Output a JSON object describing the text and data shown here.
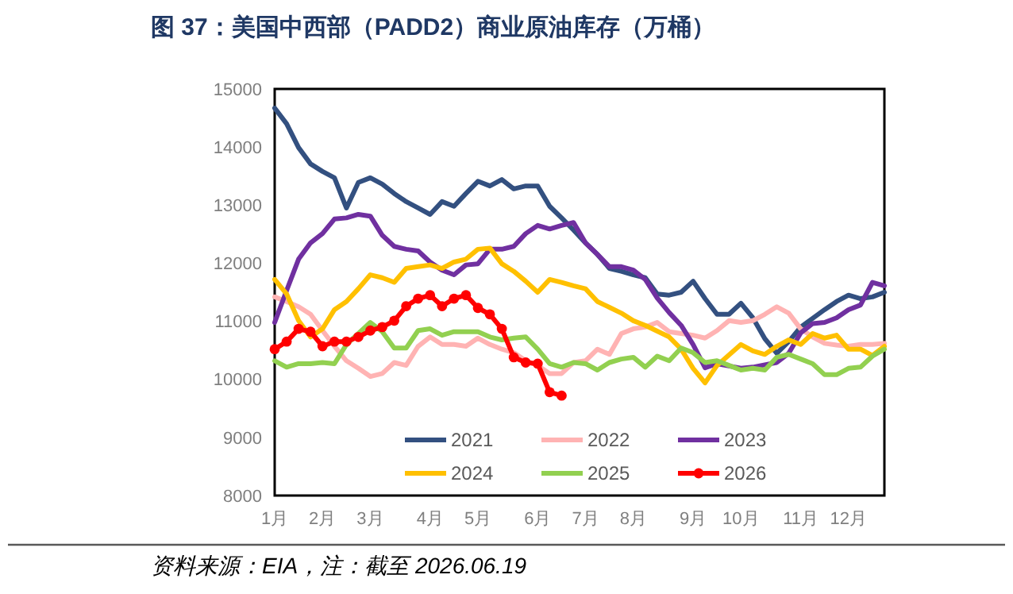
{
  "chart_data": {
    "type": "line",
    "title": "图 37：美国中西部（PADD2）商业原油库存（万桶）",
    "annotations": [
      "资料来源：EIA，注：截至 2026.06.19"
    ],
    "categories": [
      "1月",
      null,
      null,
      null,
      "2月",
      null,
      null,
      null,
      "3月",
      null,
      null,
      null,
      null,
      "4月",
      null,
      null,
      null,
      "5月",
      null,
      null,
      null,
      null,
      "6月",
      null,
      null,
      null,
      "7月",
      null,
      null,
      null,
      "8月",
      null,
      null,
      null,
      null,
      "9月",
      null,
      null,
      null,
      "10月",
      null,
      null,
      null,
      null,
      "11月",
      null,
      null,
      null,
      "12月",
      null,
      null,
      null
    ],
    "ylim": [
      8000,
      15000
    ],
    "yticks": [
      8000,
      9000,
      10000,
      11000,
      12000,
      13000,
      14000,
      15000
    ],
    "grid": false,
    "legend": "bottom",
    "line_style": "solid",
    "series": [
      {
        "name": "2021",
        "color": "#335080",
        "values": [
          14670,
          14400,
          13990,
          13710,
          13580,
          13470,
          12950,
          13390,
          13470,
          13360,
          13200,
          13060,
          12950,
          12840,
          13060,
          12980,
          13200,
          13410,
          13330,
          13440,
          13280,
          13330,
          13330,
          12980,
          12780,
          12570,
          12350,
          12150,
          11910,
          11860,
          11800,
          11750,
          11470,
          11450,
          11500,
          11690,
          11390,
          11120,
          11120,
          11310,
          11060,
          10700,
          10450,
          10650,
          10900,
          11050,
          11200,
          11340,
          11450,
          11390,
          11420,
          11500
        ]
      },
      {
        "name": "2022",
        "color": "#ffb3b3",
        "values": [
          11420,
          11340,
          11250,
          11120,
          10840,
          10570,
          10320,
          10190,
          10050,
          10100,
          10290,
          10240,
          10570,
          10730,
          10600,
          10600,
          10570,
          10710,
          10600,
          10520,
          10460,
          10320,
          10240,
          10100,
          10100,
          10290,
          10320,
          10520,
          10430,
          10790,
          10870,
          10900,
          10980,
          10820,
          10790,
          10760,
          10710,
          10840,
          11010,
          10980,
          11010,
          11120,
          11250,
          11140,
          10870,
          10730,
          10620,
          10590,
          10570,
          10600,
          10600,
          10620
        ]
      },
      {
        "name": "2023",
        "color": "#7030a0",
        "values": [
          10980,
          11530,
          12070,
          12350,
          12510,
          12760,
          12780,
          12840,
          12810,
          12480,
          12290,
          12240,
          12210,
          12020,
          11880,
          11800,
          11970,
          11990,
          12240,
          12240,
          12290,
          12510,
          12650,
          12590,
          12650,
          12700,
          12350,
          12150,
          11940,
          11940,
          11880,
          11720,
          11400,
          11150,
          10930,
          10600,
          10200,
          10270,
          10230,
          10190,
          10210,
          10250,
          10290,
          10450,
          10800,
          10960,
          10980,
          11060,
          11200,
          11280,
          11670,
          11610
        ]
      },
      {
        "name": "2024",
        "color": "#ffc000",
        "values": [
          11720,
          11470,
          11010,
          10730,
          10870,
          11200,
          11340,
          11560,
          11800,
          11750,
          11670,
          11910,
          11940,
          11970,
          11910,
          12020,
          12070,
          12240,
          12260,
          11990,
          11860,
          11690,
          11500,
          11720,
          11670,
          11610,
          11560,
          11340,
          11240,
          11140,
          11010,
          10930,
          10830,
          10730,
          10520,
          10190,
          9940,
          10240,
          10420,
          10600,
          10490,
          10430,
          10570,
          10680,
          10600,
          10790,
          10710,
          10760,
          10520,
          10520,
          10410,
          10570
        ]
      },
      {
        "name": "2025",
        "color": "#92d050",
        "values": [
          10320,
          10210,
          10270,
          10270,
          10290,
          10270,
          10600,
          10790,
          10980,
          10820,
          10540,
          10540,
          10840,
          10870,
          10760,
          10820,
          10820,
          10820,
          10730,
          10680,
          10710,
          10730,
          10520,
          10270,
          10210,
          10290,
          10270,
          10160,
          10290,
          10350,
          10380,
          10210,
          10400,
          10320,
          10540,
          10460,
          10290,
          10320,
          10240,
          10160,
          10190,
          10160,
          10380,
          10430,
          10350,
          10270,
          10080,
          10080,
          10190,
          10210,
          10400,
          10520
        ]
      },
      {
        "name": "2026",
        "color": "#ff0000",
        "marker": "circle",
        "values": [
          10520,
          10650,
          10870,
          10820,
          10570,
          10650,
          10650,
          10730,
          10840,
          10900,
          11010,
          11260,
          11390,
          11450,
          11260,
          11390,
          11450,
          11230,
          11120,
          10870,
          10380,
          10290,
          10270,
          9780,
          9720,
          null,
          null,
          null,
          null,
          null,
          null,
          null,
          null,
          null,
          null,
          null,
          null,
          null,
          null,
          null,
          null,
          null,
          null,
          null,
          null,
          null,
          null,
          null,
          null,
          null,
          null,
          null
        ]
      }
    ]
  }
}
